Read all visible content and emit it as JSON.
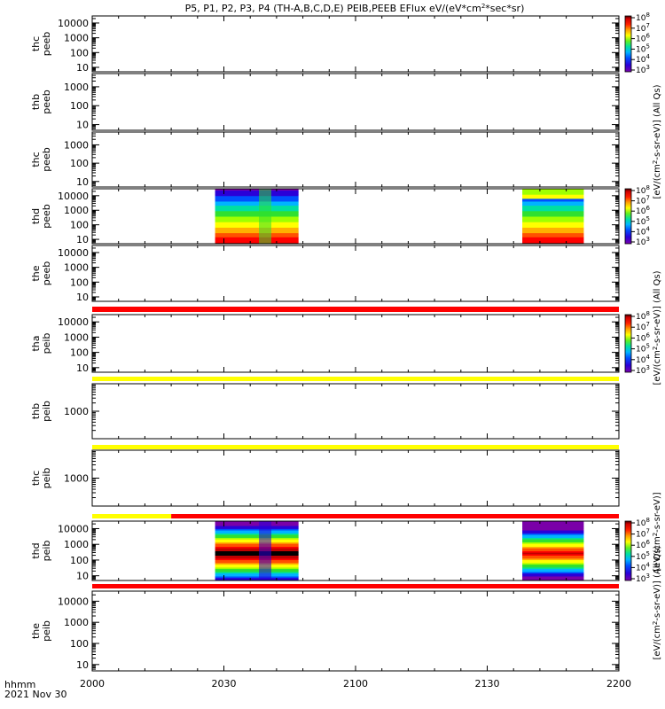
{
  "chart_data": {
    "type": "heatmap",
    "title": "P5, P1, P2, P3, P4 (TH-A,B,C,D,E) PEIB,PEEB EFlux eV/(eV*cm2*sec*sr)",
    "title_parts": {
      "main": "P5, P1, P2, P3, P4 (TH-A,B,C,D,E) PEIB,PEEB EFlux eV/(eV*cm",
      "sup": "2",
      "tail": "*sec*sr)"
    },
    "x_axis": {
      "label_line1": "hhmm",
      "label_line2": "2021 Nov 30",
      "range": [
        "2000",
        "2200"
      ],
      "ticks": [
        "2000",
        "2030",
        "2100",
        "2130",
        "2200"
      ]
    },
    "colorbar_label": "[eV/(cm2-s-sr-eV)] (All Qs)",
    "colorbar_label_parts": {
      "a": "[eV/(cm",
      "sup": "2",
      "b": "-s-sr-eV)] (All Qs)"
    },
    "colorbar_label_short": "[eV/(cm2-s-sr-eV)]",
    "colorbar_label_short_parts": {
      "a": "[eV/(cm",
      "sup": "2",
      "b": "-s-sr-eV)]"
    },
    "colorbar_label_tail": "(All Qs)",
    "panels": [
      {
        "probe": "thc",
        "instrument": "peeb",
        "yticks": [
          "10",
          "100",
          "1000",
          "10000"
        ],
        "yrange": [
          5,
          30000
        ],
        "scale": "log",
        "data": "none",
        "colorbar_ticks": [
          "3",
          "4",
          "5",
          "6",
          "7",
          "8"
        ]
      },
      {
        "probe": "thb",
        "instrument": "peeb",
        "yticks": [
          "10",
          "100",
          "1000"
        ],
        "yrange": [
          5,
          5000
        ],
        "scale": "log",
        "data": "none"
      },
      {
        "probe": "thc",
        "instrument": "peeb",
        "yticks": [
          "10",
          "100",
          "1000"
        ],
        "yrange": [
          5,
          5000
        ],
        "scale": "log",
        "data": "none"
      },
      {
        "probe": "thd",
        "instrument": "peeb",
        "yticks": [
          "10",
          "100",
          "1000",
          "10000"
        ],
        "yrange": [
          5,
          30000
        ],
        "scale": "log",
        "data_intervals": [
          [
            "2028",
            "2047"
          ],
          [
            "2138",
            "2152"
          ]
        ],
        "colorbar_ticks": [
          "3",
          "4",
          "5",
          "6",
          "7",
          "8"
        ]
      },
      {
        "probe": "the",
        "instrument": "peeb",
        "yticks": [
          "10",
          "100",
          "1000",
          "10000"
        ],
        "yrange": [
          5,
          30000
        ],
        "scale": "log",
        "data": "none",
        "status_bar": [
          {
            "from": "2000",
            "to": "2200",
            "color": "#ff0000"
          }
        ]
      },
      {
        "probe": "tha",
        "instrument": "peib",
        "yticks": [
          "10",
          "100",
          "1000",
          "10000"
        ],
        "yrange": [
          5,
          30000
        ],
        "scale": "log",
        "data": "none",
        "status_bar": [
          {
            "from": "2000",
            "to": "2200",
            "color": "#ffff00"
          }
        ],
        "colorbar_ticks": [
          "3",
          "4",
          "5",
          "6",
          "7",
          "8"
        ]
      },
      {
        "probe": "thb",
        "instrument": "peib",
        "yticks": [
          "1000"
        ],
        "yrange": [
          100,
          10000
        ],
        "scale": "log",
        "data": "none",
        "status_bar": [
          {
            "from": "2000",
            "to": "2200",
            "color": "#ffff00"
          }
        ]
      },
      {
        "probe": "thc",
        "instrument": "peib",
        "yticks": [
          "1000"
        ],
        "yrange": [
          100,
          10000
        ],
        "scale": "log",
        "data": "none",
        "status_bar": [
          {
            "from": "2000",
            "to": "2018",
            "color": "#ffff00"
          },
          {
            "from": "2018",
            "to": "2200",
            "color": "#ff0000"
          }
        ]
      },
      {
        "probe": "thd",
        "instrument": "peib",
        "yticks": [
          "10",
          "100",
          "1000",
          "10000"
        ],
        "yrange": [
          5,
          30000
        ],
        "scale": "log",
        "data_intervals": [
          [
            "2028",
            "2047"
          ],
          [
            "2138",
            "2152"
          ]
        ],
        "colorbar_ticks": [
          "3",
          "4",
          "5",
          "6",
          "7",
          "8"
        ],
        "status_bar": [
          {
            "from": "2000",
            "to": "2200",
            "color": "#ff0000"
          }
        ]
      },
      {
        "probe": "the",
        "instrument": "peib",
        "yticks": [
          "10",
          "100",
          "1000",
          "10000"
        ],
        "yrange": [
          5,
          30000
        ],
        "scale": "log",
        "data": "none"
      }
    ],
    "colorscale": [
      "#7a00a8",
      "#2a00d8",
      "#0050ff",
      "#00b4ff",
      "#00e0a0",
      "#30e030",
      "#a0ff00",
      "#ffff00",
      "#ffb000",
      "#ff5000",
      "#ff0000",
      "#c00000",
      "#000000"
    ]
  }
}
